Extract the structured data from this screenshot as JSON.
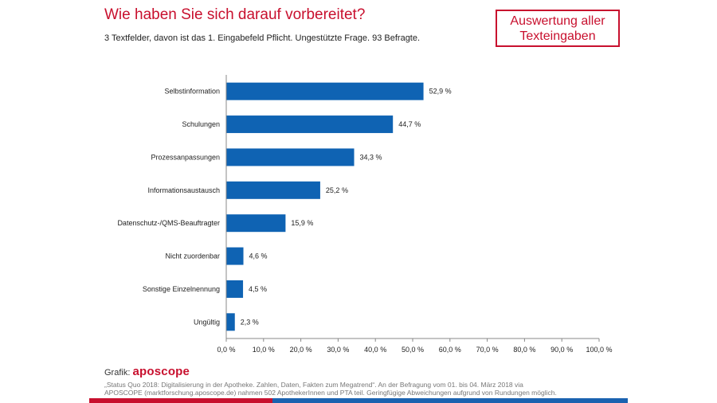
{
  "header": {
    "title": "Wie haben Sie sich darauf vorbereitet?",
    "subtitle": "3 Textfelder, davon ist das 1. Eingabefeld Pflicht. Ungestützte Frage. 93 Befragte.",
    "badge_line1": "Auswertung aller",
    "badge_line2": "Texteingaben"
  },
  "chart_data": {
    "type": "bar",
    "orientation": "horizontal",
    "categories": [
      "Selbstinformation",
      "Schulungen",
      "Prozessanpassungen",
      "Informationsaustausch",
      "Datenschutz-/QMS-Beauftragter",
      "Nicht zuordenbar",
      "Sonstige Einzelnennung",
      "Ungültig"
    ],
    "values": [
      52.9,
      44.7,
      34.3,
      25.2,
      15.9,
      4.6,
      4.5,
      2.3
    ],
    "value_labels": [
      "52,9 %",
      "44,7 %",
      "34,3 %",
      "25,2 %",
      "15,9 %",
      "4,6 %",
      "4,5 %",
      "2,3 %"
    ],
    "xlim": [
      0,
      100
    ],
    "xticks": [
      "0,0 %",
      "10,0 %",
      "20,0 %",
      "30,0 %",
      "40,0 %",
      "50,0 %",
      "60,0 %",
      "70,0 %",
      "80,0 %",
      "90,0 %",
      "100,0 %"
    ],
    "bar_color": "#0f63b3",
    "grid": false
  },
  "footer": {
    "credit_label": "Grafik:",
    "brand": "aposcope",
    "source_line1": "„Status Quo 2018: Digitalisierung in der Apotheke. Zahlen, Daten, Fakten zum Megatrend“. An der Befragung vom 01. bis 04. März 2018 via",
    "source_line2": "APOSCOPE (marktforschung.aposcope.de) nahmen 502 ApothekerInnen und PTA teil. Geringfügige Abweichungen aufgrund von Rundungen möglich."
  },
  "colors": {
    "accent": "#c8102e",
    "bar": "#0f63b3",
    "stripe_blue": "#1a62b0"
  }
}
